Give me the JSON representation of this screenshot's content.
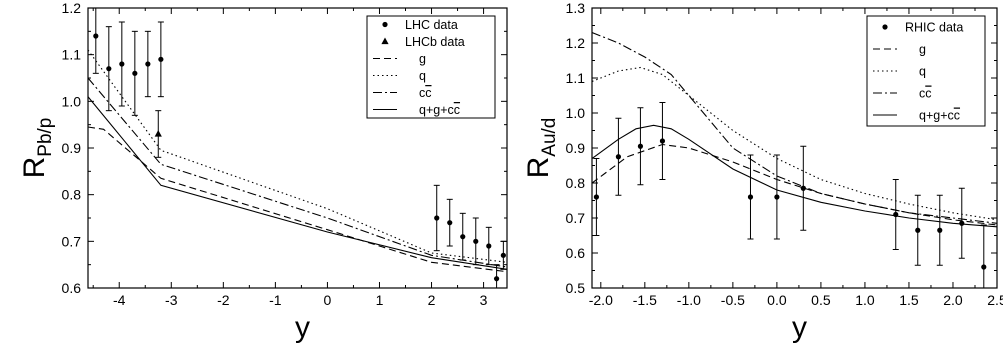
{
  "chart_data": [
    {
      "type": "line",
      "xlabel": "y",
      "ylabel": "R",
      "ylabel_sub": "Pb/p",
      "xlim": [
        -4.6,
        3.45
      ],
      "ylim": [
        0.6,
        1.2
      ],
      "xticks": [
        -4,
        -3,
        -2,
        -1,
        0,
        1,
        2,
        3
      ],
      "xtick_labels": [
        "-4",
        "-3",
        "-2",
        "-1",
        "0",
        "1",
        "2",
        "3"
      ],
      "yticks": [
        0.6,
        0.7,
        0.8,
        0.9,
        1.0,
        1.1,
        1.2
      ],
      "ytick_labels": [
        "0.6",
        "0.7",
        "0.8",
        "0.9",
        "1.0",
        "1.1",
        "1.2"
      ],
      "legend_position": "top-right",
      "series": [
        {
          "name": "LHC data",
          "kind": "points",
          "marker": "circle",
          "x": [
            -4.45,
            -4.2,
            -3.95,
            -3.7,
            -3.45,
            -3.2,
            2.1,
            2.35,
            2.6,
            2.85,
            3.1,
            3.25,
            3.38
          ],
          "y": [
            1.14,
            1.07,
            1.08,
            1.06,
            1.08,
            1.09,
            0.75,
            0.74,
            0.71,
            0.7,
            0.69,
            0.62,
            0.67
          ],
          "err": [
            0.08,
            0.09,
            0.09,
            0.09,
            0.07,
            0.08,
            0.07,
            0.05,
            0.05,
            0.05,
            0.04,
            0.03,
            0.03
          ]
        },
        {
          "name": "LHCb data",
          "kind": "points",
          "marker": "triangle",
          "x": [
            -3.25
          ],
          "y": [
            0.93
          ],
          "err": [
            0.05
          ]
        },
        {
          "name": "g",
          "kind": "line",
          "dash": "dashed",
          "x": [
            -4.6,
            -4.3,
            -3.2,
            0,
            2.0,
            3.45
          ],
          "y": [
            0.945,
            0.94,
            0.835,
            0.725,
            0.655,
            0.635
          ]
        },
        {
          "name": "q",
          "kind": "line",
          "dash": "dotted",
          "x": [
            -4.6,
            -3.2,
            0,
            2.0,
            3.45
          ],
          "y": [
            1.11,
            0.895,
            0.77,
            0.675,
            0.655
          ]
        },
        {
          "name": "c",
          "name_overline": "c",
          "kind": "line",
          "dash": "dashdot",
          "x": [
            -4.6,
            -3.2,
            0,
            2.0,
            3.45
          ],
          "y": [
            1.05,
            0.865,
            0.75,
            0.67,
            0.645
          ]
        },
        {
          "name": "q+g+c",
          "name_overline": "c",
          "kind": "line",
          "dash": "solid",
          "x": [
            -4.6,
            -3.2,
            0,
            2.0,
            3.45
          ],
          "y": [
            1.01,
            0.82,
            0.72,
            0.665,
            0.64
          ]
        }
      ]
    },
    {
      "type": "line",
      "xlabel": "y",
      "ylabel": "R",
      "ylabel_sub": "Au/d",
      "xlim": [
        -2.1,
        2.5
      ],
      "ylim": [
        0.5,
        1.3
      ],
      "xticks": [
        -2.0,
        -1.5,
        -1.0,
        -0.5,
        0.0,
        0.5,
        1.0,
        1.5,
        2.0,
        2.5
      ],
      "xtick_labels": [
        "-2.0",
        "-1.5",
        "-1.0",
        "-0.5",
        "0.0",
        "0.5",
        "1.0",
        "1.5",
        "2.0",
        "2.5"
      ],
      "yticks": [
        0.5,
        0.6,
        0.7,
        0.8,
        0.9,
        1.0,
        1.1,
        1.2,
        1.3
      ],
      "ytick_labels": [
        "0.5",
        "0.6",
        "0.7",
        "0.8",
        "0.9",
        "1.0",
        "1.1",
        "1.2",
        "1.3"
      ],
      "legend_position": "top-right",
      "series": [
        {
          "name": "RHIC data",
          "kind": "points",
          "marker": "circle",
          "x": [
            -2.05,
            -1.8,
            -1.55,
            -1.3,
            -0.3,
            0.0,
            0.3,
            1.35,
            1.6,
            1.85,
            2.1,
            2.35
          ],
          "y": [
            0.76,
            0.875,
            0.905,
            0.92,
            0.76,
            0.76,
            0.785,
            0.71,
            0.665,
            0.665,
            0.685,
            0.56
          ],
          "err": [
            0.11,
            0.11,
            0.11,
            0.11,
            0.12,
            0.12,
            0.12,
            0.1,
            0.1,
            0.1,
            0.1,
            0.12
          ]
        },
        {
          "name": "g",
          "kind": "line",
          "dash": "dashed",
          "x": [
            -2.1,
            -1.7,
            -1.3,
            -1.0,
            -0.5,
            0.0,
            0.5,
            1.0,
            1.5,
            2.0,
            2.5
          ],
          "y": [
            0.8,
            0.875,
            0.91,
            0.9,
            0.86,
            0.81,
            0.77,
            0.74,
            0.715,
            0.695,
            0.68
          ]
        },
        {
          "name": "q",
          "kind": "line",
          "dash": "dotted",
          "x": [
            -2.1,
            -1.8,
            -1.55,
            -1.3,
            -1.0,
            -0.5,
            0.0,
            0.5,
            1.0,
            1.5,
            2.0,
            2.5
          ],
          "y": [
            1.09,
            1.12,
            1.13,
            1.11,
            1.05,
            0.95,
            0.87,
            0.81,
            0.77,
            0.74,
            0.715,
            0.695
          ]
        },
        {
          "name": "c",
          "name_overline": "c",
          "kind": "line",
          "dash": "dashdot",
          "x": [
            -2.1,
            -1.8,
            -1.5,
            -1.2,
            -1.0,
            -0.5,
            0.0,
            0.5,
            1.0,
            1.5,
            2.0,
            2.5
          ],
          "y": [
            1.23,
            1.2,
            1.16,
            1.11,
            1.05,
            0.9,
            0.82,
            0.77,
            0.74,
            0.715,
            0.7,
            0.685
          ]
        },
        {
          "name": "q+g+c",
          "name_overline": "c",
          "kind": "line",
          "dash": "solid",
          "x": [
            -2.1,
            -1.8,
            -1.6,
            -1.4,
            -1.2,
            -1.0,
            -0.5,
            0.0,
            0.5,
            1.0,
            1.5,
            2.0,
            2.5
          ],
          "y": [
            0.87,
            0.925,
            0.955,
            0.965,
            0.955,
            0.925,
            0.84,
            0.78,
            0.745,
            0.72,
            0.7,
            0.685,
            0.675
          ]
        }
      ]
    }
  ]
}
